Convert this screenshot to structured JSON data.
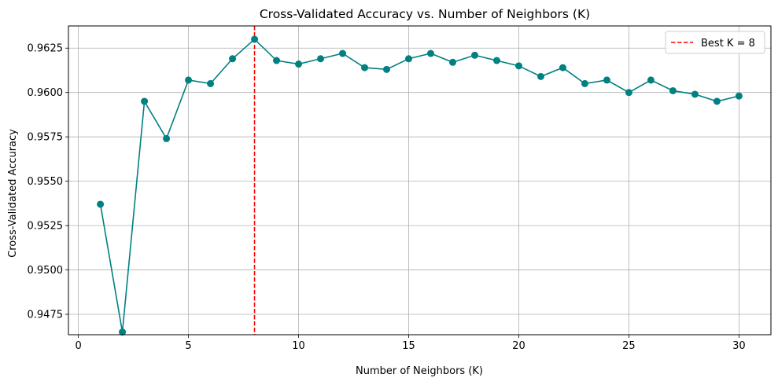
{
  "chart_data": {
    "type": "line",
    "title": "Cross-Validated Accuracy vs. Number of Neighbors (K)",
    "xlabel": "Number of Neighbors (K)",
    "ylabel": "Cross-Validated Accuracy",
    "xlim": [
      -0.45,
      31.45
    ],
    "ylim": [
      0.94635,
      0.96375
    ],
    "xticks": [
      0,
      5,
      10,
      15,
      20,
      25,
      30
    ],
    "xtick_labels": [
      "0",
      "5",
      "10",
      "15",
      "20",
      "25",
      "30"
    ],
    "yticks": [
      0.9475,
      0.95,
      0.9525,
      0.955,
      0.9575,
      0.96,
      0.9625
    ],
    "ytick_labels": [
      "0.9475",
      "0.9500",
      "0.9525",
      "0.9550",
      "0.9575",
      "0.9600",
      "0.9625"
    ],
    "grid": true,
    "legend_position": "top-right",
    "series": [
      {
        "name": "",
        "color": "#008080",
        "marker": "circle",
        "x": [
          1,
          2,
          3,
          4,
          5,
          6,
          7,
          8,
          9,
          10,
          11,
          12,
          13,
          14,
          15,
          16,
          17,
          18,
          19,
          20,
          21,
          22,
          23,
          24,
          25,
          26,
          27,
          28,
          29,
          30
        ],
        "y": [
          0.9537,
          0.9465,
          0.9595,
          0.9574,
          0.9607,
          0.9605,
          0.9619,
          0.963,
          0.9618,
          0.9616,
          0.9619,
          0.9622,
          0.9614,
          0.9613,
          0.9619,
          0.9622,
          0.9617,
          0.9621,
          0.9618,
          0.9615,
          0.9609,
          0.9614,
          0.9605,
          0.9607,
          0.96,
          0.9607,
          0.9601,
          0.9599,
          0.9595,
          0.9598
        ]
      }
    ],
    "reference_lines": [
      {
        "orientation": "vertical",
        "x": 8,
        "style": "dashed",
        "color": "#ff0000",
        "label": "Best K = 8"
      }
    ]
  }
}
